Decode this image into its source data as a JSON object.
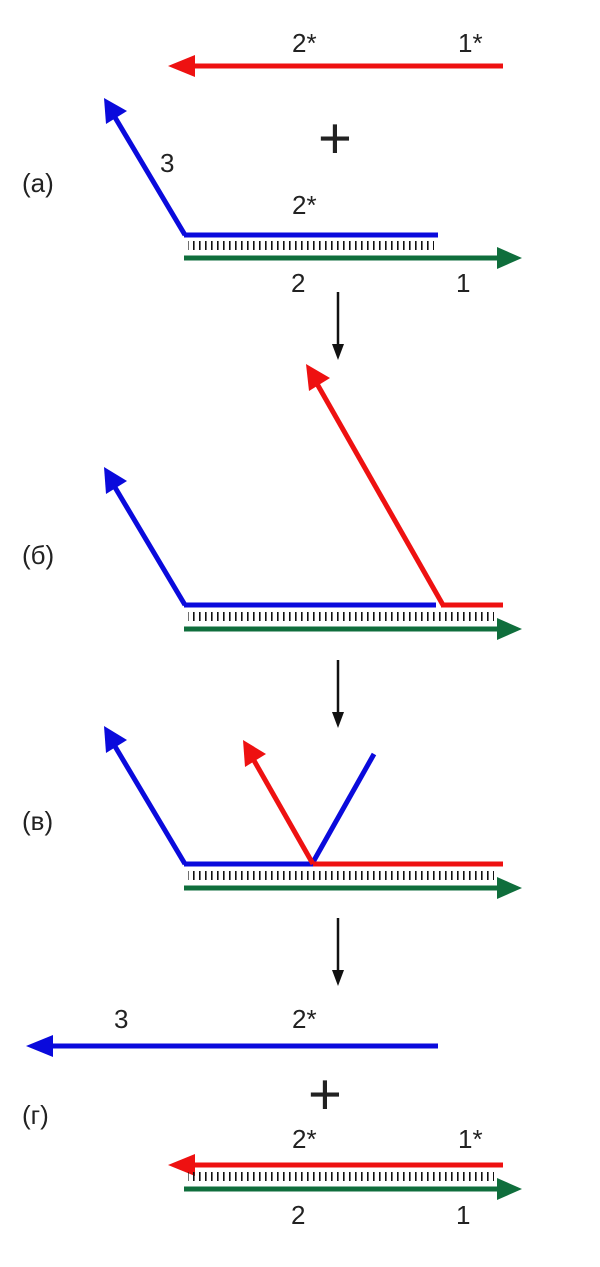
{
  "colors": {
    "red": "#ee1111",
    "blue": "#0a0adc",
    "green": "#0f6e3c",
    "black": "#111111"
  },
  "panels": {
    "a": {
      "label": "(а)",
      "red_left": "2*",
      "red_right": "1*",
      "plus": "+",
      "blue_branch": "3",
      "blue_top": "2*",
      "green_left": "2",
      "green_right": "1"
    },
    "b": {
      "label": "(б)"
    },
    "c": {
      "label": "(в)"
    },
    "d": {
      "label": "(г)",
      "blue_left": "3",
      "blue_right": "2*",
      "plus": "+",
      "red_left": "2*",
      "red_right": "1*",
      "green_left": "2",
      "green_right": "1"
    }
  }
}
